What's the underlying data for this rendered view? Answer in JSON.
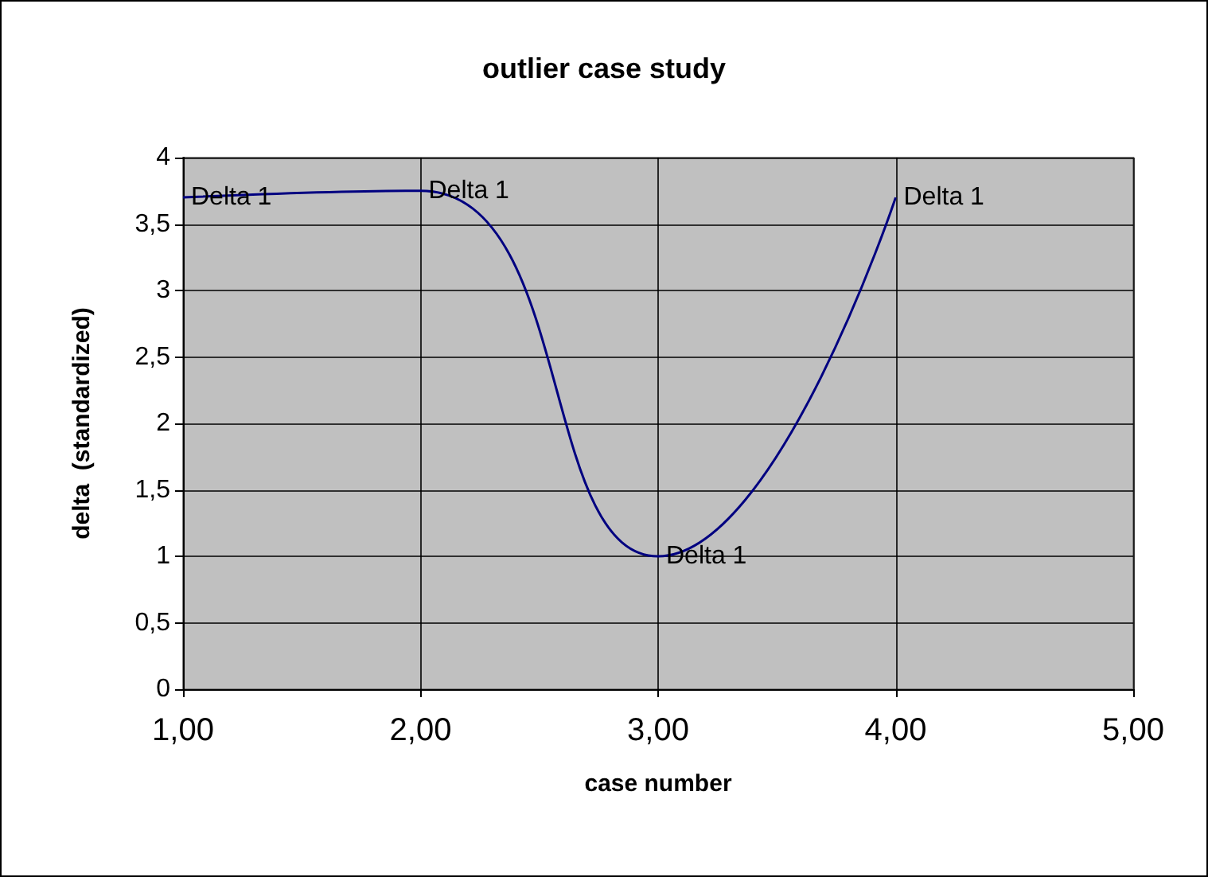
{
  "chart_data": {
    "type": "line",
    "title": "outlier case study",
    "xlabel": "case number",
    "ylabel": "delta  (standardized)",
    "x": [
      1,
      2,
      3,
      4
    ],
    "series": [
      {
        "name": "Delta 1",
        "color": "#000080",
        "values": [
          3.7,
          3.75,
          1,
          3.7
        ]
      }
    ],
    "xlim": [
      1,
      5
    ],
    "xticks": [
      {
        "value": 1,
        "label": "1,00"
      },
      {
        "value": 2,
        "label": "2,00"
      },
      {
        "value": 3,
        "label": "3,00"
      },
      {
        "value": 4,
        "label": "4,00"
      },
      {
        "value": 5,
        "label": "5,00"
      }
    ],
    "ylim": [
      0,
      4
    ],
    "yticks": [
      0,
      {
        "value": 0.5,
        "label": "0,5"
      },
      1,
      {
        "value": 1.5,
        "label": "1,5"
      },
      2,
      {
        "value": 2.5,
        "label": "2,5"
      },
      3,
      {
        "value": 3.5,
        "label": "3,5"
      },
      4
    ],
    "grid": true,
    "legend": false,
    "marker": "none",
    "line_style": "solid"
  }
}
